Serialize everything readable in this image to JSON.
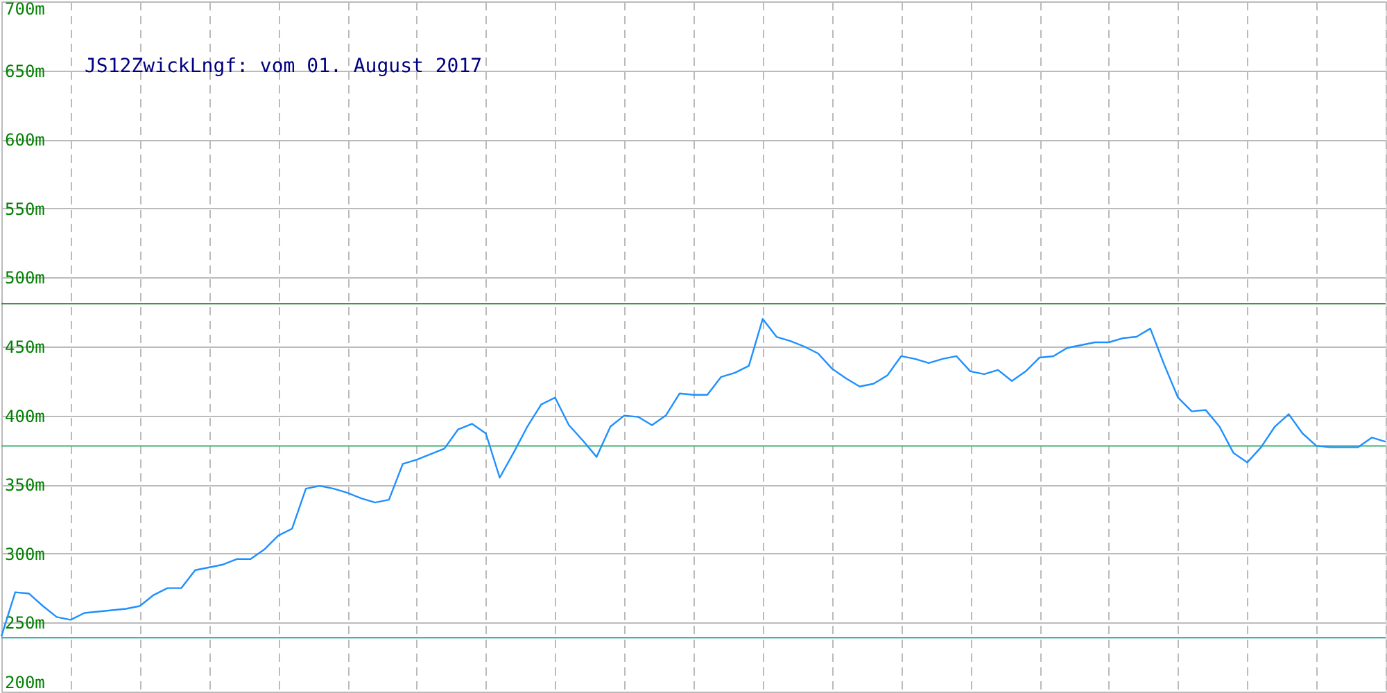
{
  "chart_data": {
    "type": "line",
    "title": "JS12ZwickLngf: vom 01. August 2017",
    "categories": [
      null,
      null,
      null,
      null,
      null,
      null,
      null,
      null,
      null,
      null,
      null,
      null,
      null,
      null,
      null,
      null,
      null,
      null,
      null,
      null,
      null,
      null,
      null,
      null,
      null,
      null,
      null,
      null,
      null,
      null,
      null,
      null,
      null,
      null,
      null,
      null,
      null,
      null,
      null,
      null,
      null,
      null,
      null,
      null,
      null,
      null,
      null,
      null,
      null,
      null,
      null,
      null,
      null,
      null,
      null,
      null,
      null,
      null,
      null,
      null,
      null,
      null,
      null,
      null,
      null,
      null,
      null,
      null,
      null,
      null,
      null,
      null,
      null,
      null,
      null,
      null,
      null,
      null,
      null,
      null,
      null,
      null,
      null,
      null,
      null,
      null,
      null,
      null,
      null,
      null,
      null,
      null,
      null,
      null,
      null,
      null,
      null,
      null,
      null,
      null,
      null
    ],
    "series": [
      {
        "color": "#1e90ff",
        "values": [
          240,
          272,
          271,
          262,
          254,
          252,
          257,
          258,
          259,
          260,
          262,
          270,
          275,
          275,
          288,
          290,
          292,
          296,
          296,
          303,
          313,
          318,
          347,
          349,
          347,
          344,
          340,
          337,
          339,
          365,
          368,
          372,
          376,
          390,
          394,
          387,
          355,
          373,
          392,
          408,
          413,
          393,
          382,
          370,
          392,
          400,
          399,
          393,
          400,
          416,
          415,
          415,
          428,
          431,
          436,
          470,
          457,
          454,
          450,
          445,
          434,
          427,
          421,
          423,
          429,
          443,
          441,
          438,
          441,
          443,
          432,
          430,
          433,
          425,
          432,
          442,
          443,
          449,
          451,
          453,
          453,
          456,
          457,
          463,
          437,
          413,
          403,
          404,
          392,
          373,
          366,
          377,
          392,
          401,
          387,
          378,
          377,
          377,
          377,
          384,
          381
        ]
      }
    ],
    "ylim": [
      200,
      700
    ],
    "yticks": [
      {
        "value": 200,
        "label": "200m"
      },
      {
        "value": 250,
        "label": "250m"
      },
      {
        "value": 300,
        "label": "300m"
      },
      {
        "value": 350,
        "label": "350m"
      },
      {
        "value": 400,
        "label": "400m"
      },
      {
        "value": 450,
        "label": "450m"
      },
      {
        "value": 500,
        "label": "500m"
      },
      {
        "value": 550,
        "label": "550m"
      },
      {
        "value": 600,
        "label": "600m"
      },
      {
        "value": 650,
        "label": "650m"
      },
      {
        "value": 700,
        "label": "700m"
      }
    ],
    "ref_lines": [
      {
        "axis": "y",
        "value": 481,
        "color": "#2e7d32"
      },
      {
        "axis": "y",
        "value": 378,
        "color": "#3cb371"
      },
      {
        "axis": "y",
        "value": 239,
        "color": "#26a69a"
      }
    ],
    "grid": true,
    "tick_labels": "y",
    "marker": "none",
    "line_style": "solid"
  }
}
